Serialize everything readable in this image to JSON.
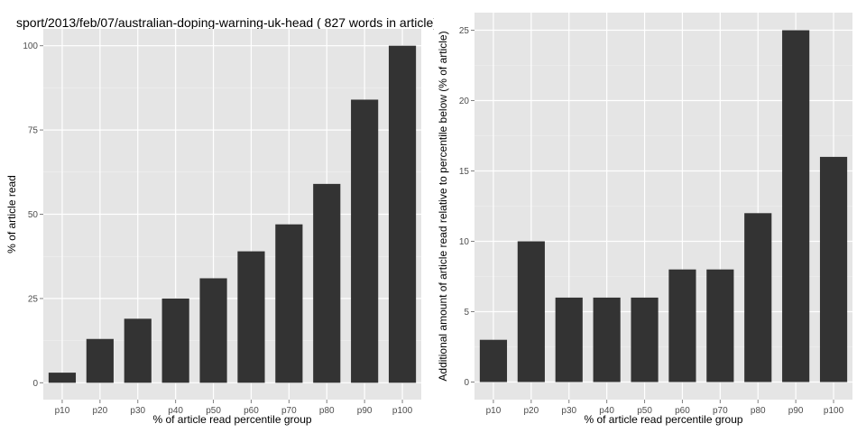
{
  "chart_data": [
    {
      "type": "bar",
      "title": "sport/2013/feb/07/australian-doping-warning-uk-head ( 827 words in article)",
      "xlabel": "% of article read percentile group",
      "ylabel": "% of article read",
      "categories": [
        "p10",
        "p20",
        "p30",
        "p40",
        "p50",
        "p60",
        "p70",
        "p80",
        "p90",
        "p100"
      ],
      "values": [
        3,
        13,
        19,
        25,
        31,
        39,
        47,
        59,
        84,
        100
      ],
      "ylim": [
        -5,
        105
      ],
      "yticks": [
        0,
        25,
        50,
        75,
        100
      ],
      "grid": true,
      "bar_color": "#333333",
      "panel_color": "#e5e5e5",
      "grid_color": "#ffffff"
    },
    {
      "type": "bar",
      "title": "",
      "xlabel": "% of article read percentile group",
      "ylabel": "Additional amount of article read relative to percentile below (% of article)",
      "categories": [
        "p10",
        "p20",
        "p30",
        "p40",
        "p50",
        "p60",
        "p70",
        "p80",
        "p90",
        "p100"
      ],
      "values": [
        3,
        10,
        6,
        6,
        6,
        8,
        8,
        12,
        25,
        16
      ],
      "ylim": [
        -1.25,
        26.25
      ],
      "yticks": [
        0,
        5,
        10,
        15,
        20,
        25
      ],
      "grid": true,
      "bar_color": "#333333",
      "panel_color": "#e5e5e5",
      "grid_color": "#ffffff"
    }
  ]
}
